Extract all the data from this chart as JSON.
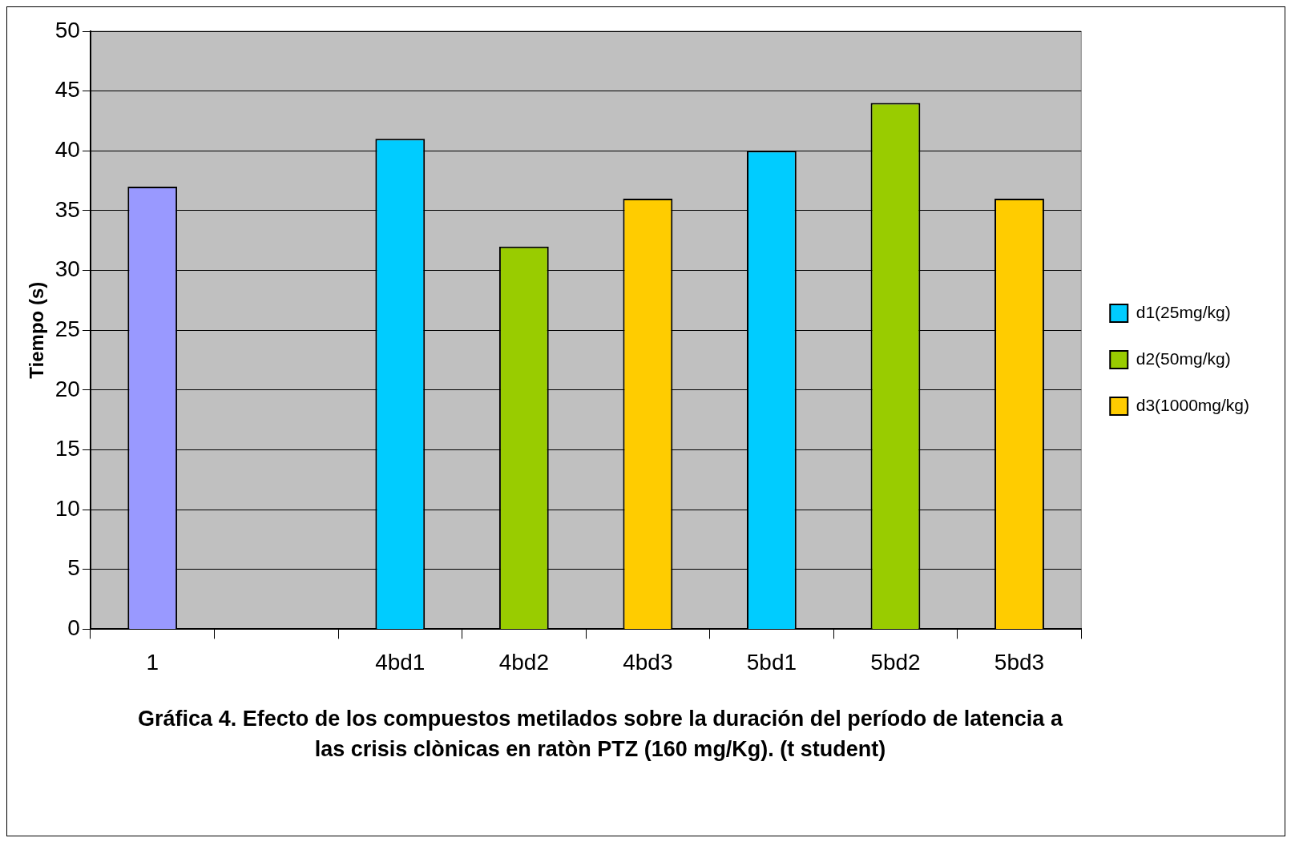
{
  "chart_data": {
    "type": "bar",
    "ylabel": "Tiempo (s)",
    "categories": [
      "1",
      null,
      "4bd1",
      "4bd2",
      "4bd3",
      "5bd1",
      "5bd2",
      "5bd3"
    ],
    "series": [
      {
        "color": "#9999ff",
        "values": [
          37,
          null,
          null,
          null,
          null,
          null,
          null,
          null
        ]
      },
      {
        "name": "d1(25mg/kg)",
        "color": "#00ccff",
        "values": [
          null,
          null,
          41,
          null,
          null,
          40,
          null,
          null
        ]
      },
      {
        "name": "d2(50mg/kg)",
        "color": "#99cc00",
        "values": [
          null,
          null,
          null,
          32,
          null,
          null,
          44,
          null
        ]
      },
      {
        "name": "d3(1000mg/kg)",
        "color": "#ffcc00",
        "values": [
          null,
          null,
          null,
          null,
          36,
          null,
          null,
          36
        ]
      }
    ],
    "ylim": [
      0,
      50
    ],
    "yticks": [
      0,
      5,
      10,
      15,
      20,
      25,
      30,
      35,
      40,
      45,
      50
    ],
    "grid": "y",
    "legend": "right",
    "annotations": [
      "Gráfica 4.  Efecto de los compuestos metilados sobre la duración del período de latencia a las crisis clònicas en ratòn PTZ (160 mg/Kg). (t student)"
    ]
  }
}
